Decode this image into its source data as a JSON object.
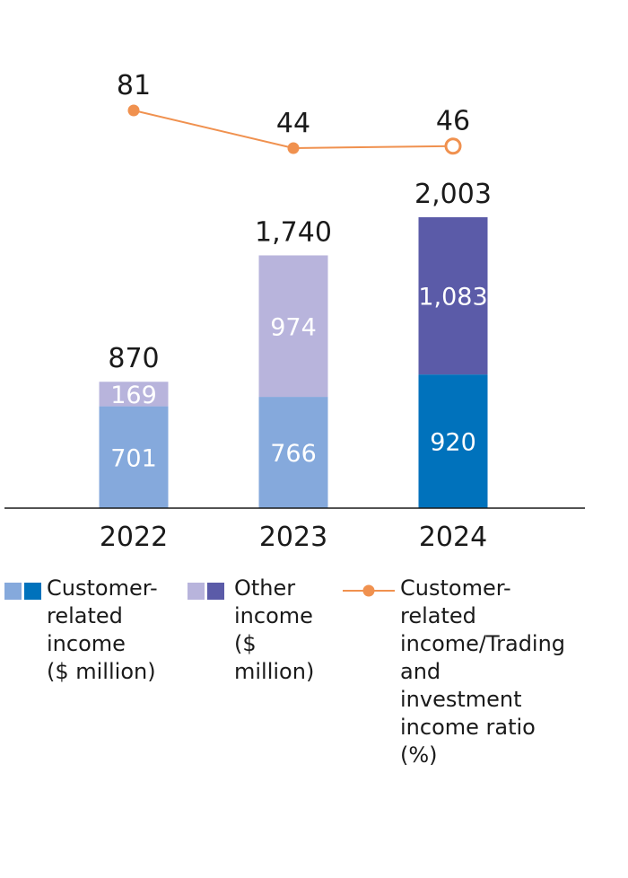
{
  "chart_data": {
    "type": "bar",
    "categories": [
      "2022",
      "2023",
      "2024"
    ],
    "series": [
      {
        "name": "Customer-related income ($ million)",
        "values": [
          701,
          766,
          920
        ]
      },
      {
        "name": "Other income ($ million)",
        "values": [
          169,
          974,
          1083
        ]
      }
    ],
    "totals": [
      "870",
      "1,740",
      "2,003"
    ],
    "value_labels": {
      "customer": [
        "701",
        "766",
        "920"
      ],
      "other": [
        "169",
        "974",
        "1,083"
      ]
    },
    "line": {
      "name": "Customer-related income/Trading and investment income ratio (%)",
      "values": [
        81,
        44,
        46
      ],
      "labels": [
        "81",
        "44",
        "46"
      ],
      "last_point_hollow": true
    },
    "legend_placement": "bottom"
  },
  "colors": {
    "customer_light": "#85a9dc",
    "customer_dark": "#0072bc",
    "other_light": "#b8b4dc",
    "other_dark": "#5b5ba8",
    "line": "#f0914f",
    "axis": "#1a1a1a"
  },
  "legend": {
    "customer": {
      "text": "Customer-\nrelated\nincome\n($ million)"
    },
    "other": {
      "text": "Other\nincome\n($ million)"
    },
    "ratio": {
      "text": "Customer-related\nincome/Trading\nand investment\nincome ratio (%)"
    }
  }
}
